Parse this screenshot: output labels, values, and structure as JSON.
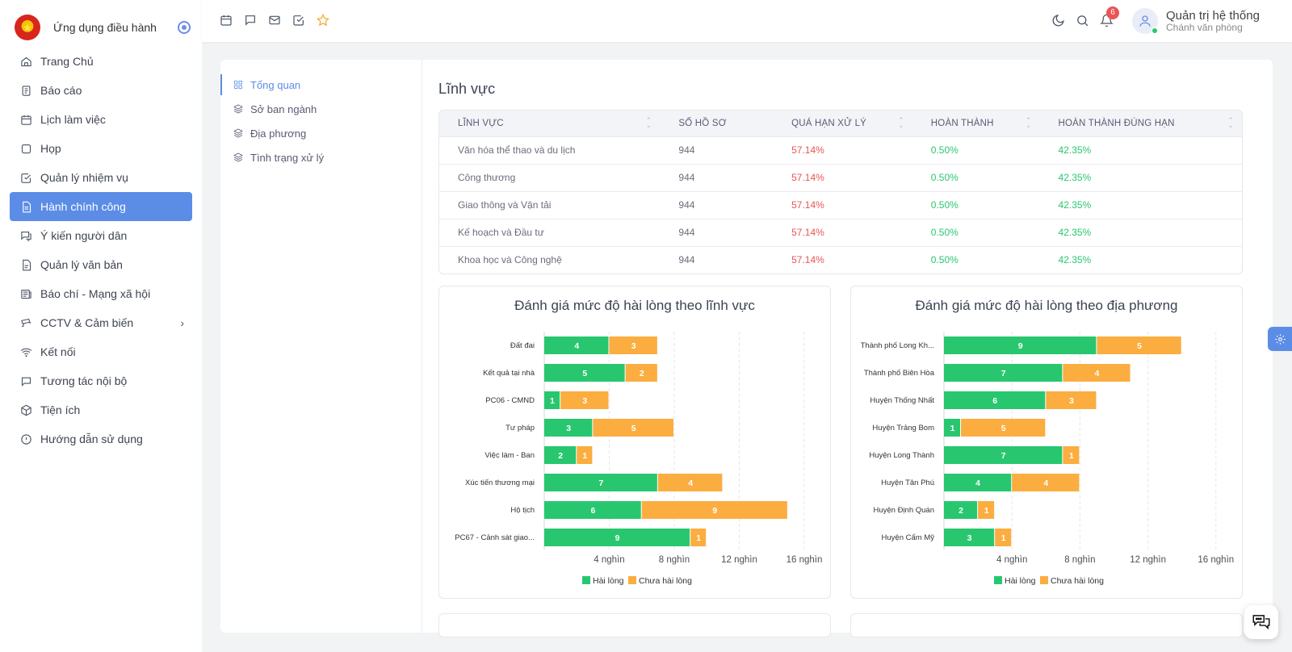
{
  "sidebar": {
    "app_name": "Ứng dụng điều hành",
    "items": [
      {
        "label": "Trang Chủ",
        "icon": "home-icon"
      },
      {
        "label": "Báo cáo",
        "icon": "report-icon"
      },
      {
        "label": "Lịch làm việc",
        "icon": "calendar-icon"
      },
      {
        "label": "Họp",
        "icon": "meeting-icon"
      },
      {
        "label": "Quản lý nhiệm vụ",
        "icon": "task-icon"
      },
      {
        "label": "Hành chính công",
        "icon": "document-icon",
        "active": true
      },
      {
        "label": "Ý kiến người dân",
        "icon": "feedback-icon"
      },
      {
        "label": "Quản lý văn bản",
        "icon": "file-icon"
      },
      {
        "label": "Báo chí - Mạng xã hội",
        "icon": "newspaper-icon"
      },
      {
        "label": "CCTV & Cảm biến",
        "icon": "cctv-icon",
        "has_children": true
      },
      {
        "label": "Kết nối",
        "icon": "wifi-icon"
      },
      {
        "label": "Tương tác nội bộ",
        "icon": "chat-icon"
      },
      {
        "label": "Tiện ích",
        "icon": "box-icon"
      },
      {
        "label": "Hướng dẫn sử dụng",
        "icon": "info-icon"
      }
    ]
  },
  "header": {
    "notification_count": "6",
    "user_name": "Quản trị hệ thống",
    "user_role": "Chánh văn phòng"
  },
  "submenu": {
    "items": [
      {
        "label": "Tổng quan",
        "active": true
      },
      {
        "label": "Sở ban ngành"
      },
      {
        "label": "Địa phương"
      },
      {
        "label": "Tình trạng xử lý"
      }
    ]
  },
  "section": {
    "title": "Lĩnh vực"
  },
  "table": {
    "columns": [
      "LĨNH VỰC",
      "SỐ HỒ SƠ",
      "QUÁ HẠN XỬ LÝ",
      "HOÀN THÀNH",
      "HOÀN THÀNH ĐÚNG HẠN"
    ],
    "rows": [
      [
        "Văn hóa thể thao và du lịch",
        "944",
        "57.14%",
        "0.50%",
        "42.35%"
      ],
      [
        "Công thương",
        "944",
        "57.14%",
        "0.50%",
        "42.35%"
      ],
      [
        "Giao thông và Vận tải",
        "944",
        "57.14%",
        "0.50%",
        "42.35%"
      ],
      [
        "Kế hoạch và Đầu tư",
        "944",
        "57.14%",
        "0.50%",
        "42.35%"
      ],
      [
        "Khoa học và Công nghệ",
        "944",
        "57.14%",
        "0.50%",
        "42.35%"
      ]
    ]
  },
  "colors": {
    "accent": "#5b8ce6",
    "satisfied": "#28c76f",
    "unsatisfied": "#fbad40",
    "overdue": "#ea5455"
  },
  "chart_data": [
    {
      "type": "bar",
      "orientation": "horizontal",
      "stacked": true,
      "title": "Đánh giá mức độ hài lòng theo lĩnh vực",
      "categories": [
        "Đất đai",
        "Kết quả tại nhà",
        "PC06 - CMND",
        "Tư pháp",
        "Việc làm - Ban",
        "Xúc tiến thương mại",
        "Hộ tịch",
        "PC67 - Cảnh sát giao..."
      ],
      "series": [
        {
          "name": "Hài lòng",
          "values": [
            4,
            5,
            1,
            3,
            2,
            7,
            6,
            9
          ]
        },
        {
          "name": "Chưa hài lòng",
          "values": [
            3,
            2,
            3,
            5,
            1,
            4,
            9,
            1
          ]
        }
      ],
      "x_ticks": [
        "4 nghìn",
        "8 nghìn",
        "12 nghìn",
        "16 nghìn"
      ],
      "x_tick_values": [
        4,
        8,
        12,
        16
      ],
      "xlim": [
        0,
        16.2
      ],
      "legend": "bottom",
      "grid": true
    },
    {
      "type": "bar",
      "orientation": "horizontal",
      "stacked": true,
      "title": "Đánh giá mức độ hài lòng theo địa phương",
      "categories": [
        "Thành phố Long Kh...",
        "Thành phố Biên Hòa",
        "Huyện Thống Nhất",
        "Huyện Trảng Bom",
        "Huyện Long Thành",
        "Huyện Tân Phú",
        "Huyện Định Quán",
        "Huyện Cẩm Mỹ"
      ],
      "series": [
        {
          "name": "Hài lòng",
          "values": [
            9,
            7,
            6,
            1,
            7,
            4,
            2,
            3
          ]
        },
        {
          "name": "Chưa hài lòng",
          "values": [
            5,
            4,
            3,
            5,
            1,
            4,
            1,
            1
          ]
        }
      ],
      "x_ticks": [
        "4 nghìn",
        "8 nghìn",
        "12 nghìn",
        "16 nghìn"
      ],
      "x_tick_values": [
        4,
        8,
        12,
        16
      ],
      "xlim": [
        0,
        16.2
      ],
      "legend": "bottom",
      "grid": true
    }
  ]
}
